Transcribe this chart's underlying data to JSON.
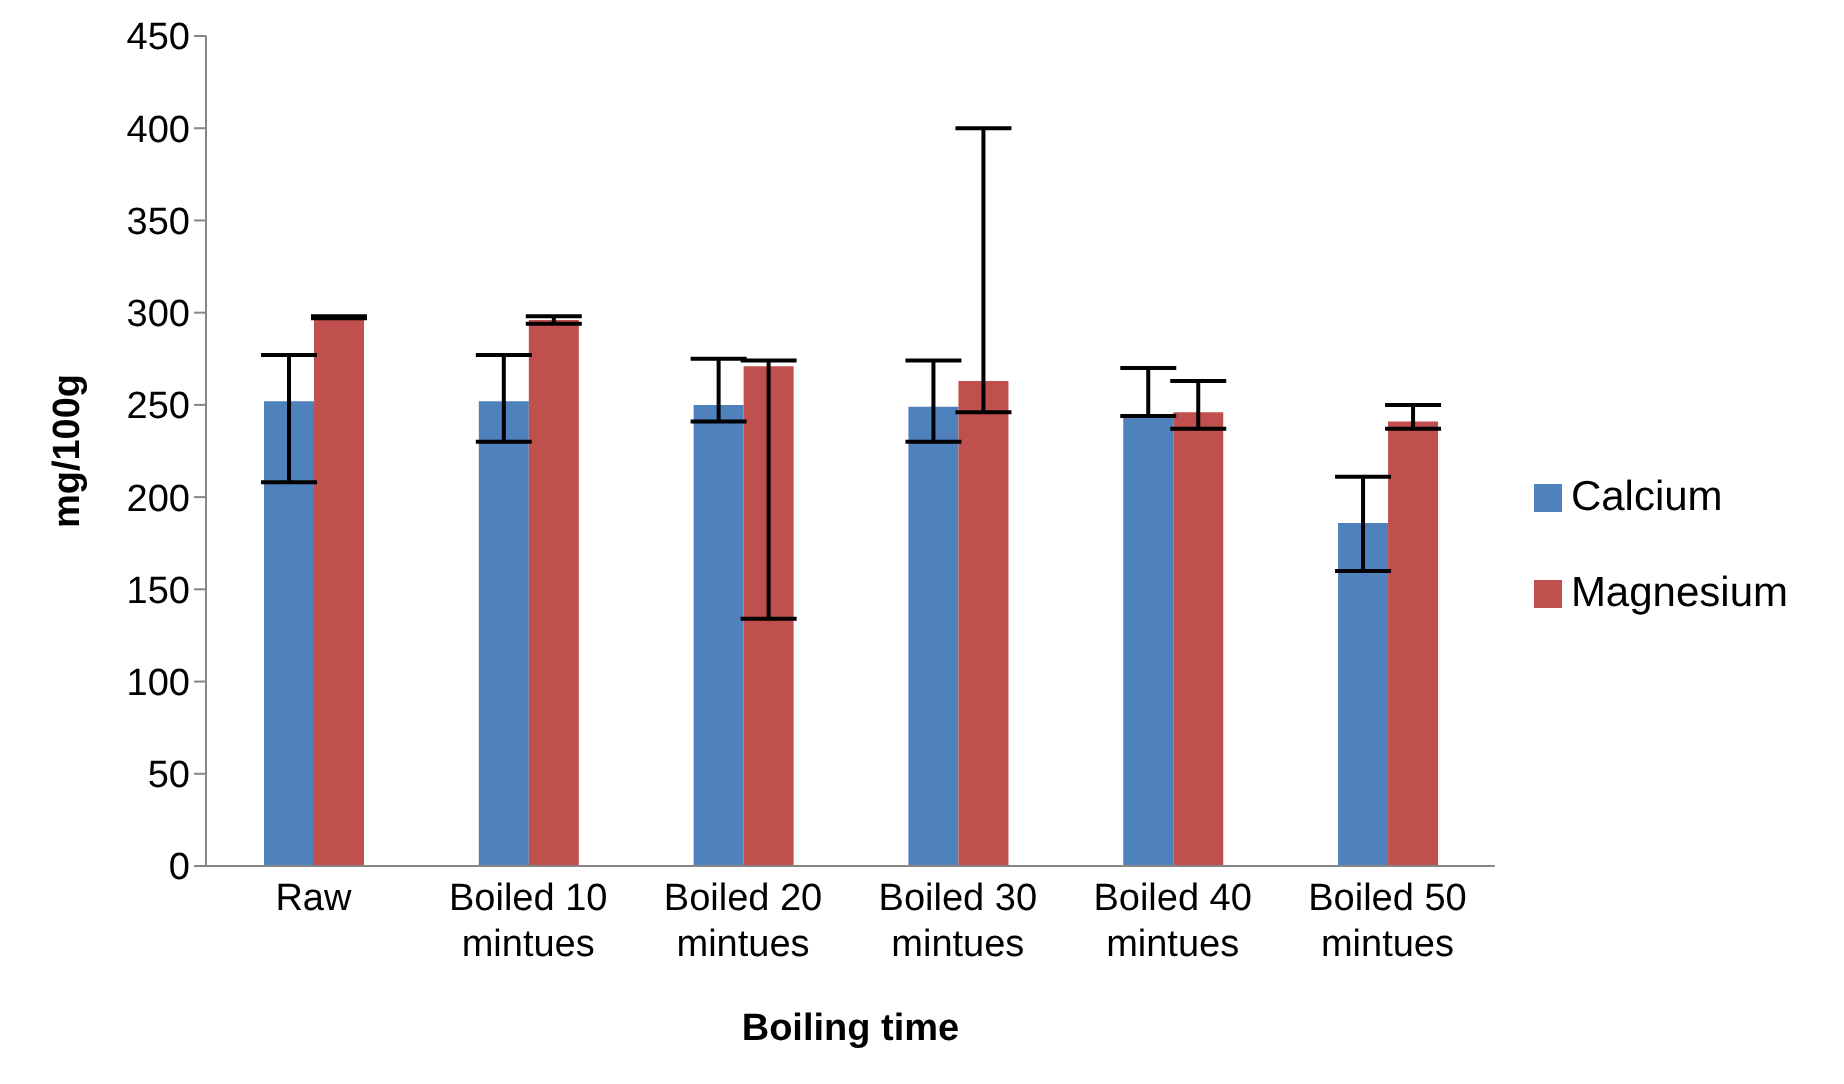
{
  "chart_data": {
    "type": "bar",
    "xlabel": "Boiling time",
    "ylabel": "mg/100g",
    "categories": [
      "Raw",
      "Boiled 10 mintues",
      "Boiled 20 mintues",
      "Boiled 30 mintues",
      "Boiled 40 mintues",
      "Boiled 50 mintues"
    ],
    "series": [
      {
        "name": "Calcium",
        "color": "#4f81bd",
        "values": [
          252,
          252,
          250,
          249,
          244,
          186
        ],
        "errors": [
          [
            208,
            277
          ],
          [
            230,
            277
          ],
          [
            241,
            275
          ],
          [
            230,
            274
          ],
          [
            244,
            270
          ],
          [
            160,
            211
          ]
        ]
      },
      {
        "name": "Magnesium",
        "color": "#c0504d",
        "values": [
          298,
          296,
          271,
          263,
          246,
          241
        ],
        "errors": [
          [
            297,
            298
          ],
          [
            294,
            298
          ],
          [
            134,
            274
          ],
          [
            246,
            400
          ],
          [
            237,
            263
          ],
          [
            237,
            250
          ]
        ]
      }
    ],
    "ylim": [
      0,
      450
    ],
    "yticks": [
      0,
      50,
      100,
      150,
      200,
      250,
      300,
      350,
      400,
      450
    ],
    "grid": false,
    "legend": "right"
  }
}
